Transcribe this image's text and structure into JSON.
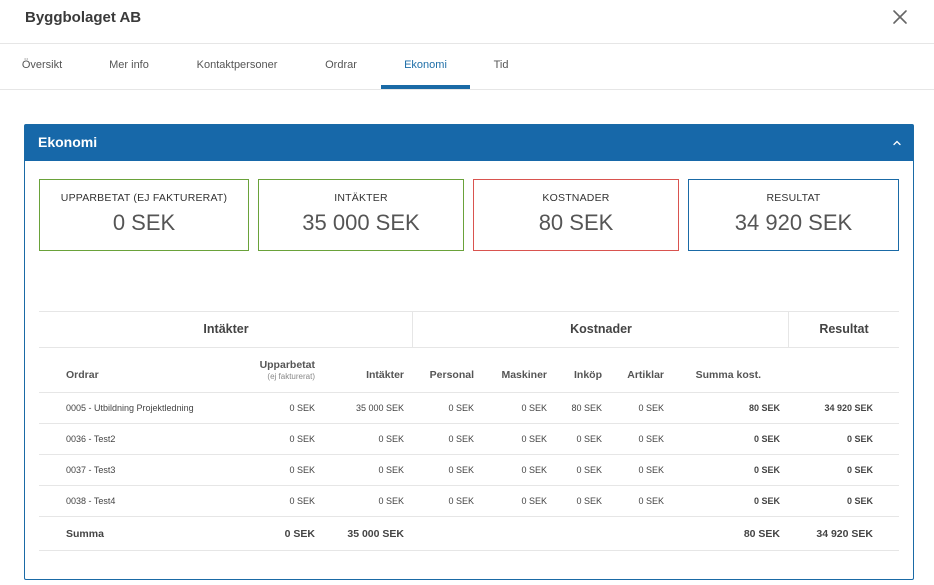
{
  "header": {
    "title": "Byggbolaget AB",
    "close_icon": "close-icon"
  },
  "tabs": [
    {
      "label": "Översikt"
    },
    {
      "label": "Mer info"
    },
    {
      "label": "Kontaktpersoner"
    },
    {
      "label": "Ordrar"
    },
    {
      "label": "Ekonomi",
      "active": true
    },
    {
      "label": "Tid"
    }
  ],
  "panel": {
    "title": "Ekonomi",
    "toggle_icon": "chevron-up-icon"
  },
  "cards": [
    {
      "label": "UPPARBETAT (EJ FAKTURERAT)",
      "value": "0 SEK",
      "color": "#6aa23a"
    },
    {
      "label": "INTÄKTER",
      "value": "35 000 SEK",
      "color": "#6aa23a"
    },
    {
      "label": "KOSTNADER",
      "value": "80 SEK",
      "color": "#d9534f"
    },
    {
      "label": "RESULTAT",
      "value": "34 920 SEK",
      "color": "#1a6aa6"
    }
  ],
  "table": {
    "groups": {
      "intakter": "Intäkter",
      "kostnader": "Kostnader",
      "resultat": "Resultat"
    },
    "columns": {
      "ordrar": "Ordrar",
      "upparbetat": "Upparbetat",
      "upparbetat_sub": "(ej fakturerat)",
      "intakter": "Intäkter",
      "personal": "Personal",
      "maskiner": "Maskiner",
      "inkop": "Inköp",
      "artiklar": "Artiklar",
      "summa_kost": "Summa kost."
    },
    "rows": [
      {
        "order": "0005 - Utbildning Projektledning",
        "upparbetat": "0 SEK",
        "intakter": "35 000 SEK",
        "personal": "0 SEK",
        "maskiner": "0 SEK",
        "inkop": "80 SEK",
        "artiklar": "0 SEK",
        "summa_kost": "80 SEK",
        "resultat": "34 920 SEK"
      },
      {
        "order": "0036 - Test2",
        "upparbetat": "0 SEK",
        "intakter": "0 SEK",
        "personal": "0 SEK",
        "maskiner": "0 SEK",
        "inkop": "0 SEK",
        "artiklar": "0 SEK",
        "summa_kost": "0 SEK",
        "resultat": "0 SEK"
      },
      {
        "order": "0037 - Test3",
        "upparbetat": "0 SEK",
        "intakter": "0 SEK",
        "personal": "0 SEK",
        "maskiner": "0 SEK",
        "inkop": "0 SEK",
        "artiklar": "0 SEK",
        "summa_kost": "0 SEK",
        "resultat": "0 SEK"
      },
      {
        "order": "0038 - Test4",
        "upparbetat": "0 SEK",
        "intakter": "0 SEK",
        "personal": "0 SEK",
        "maskiner": "0 SEK",
        "inkop": "0 SEK",
        "artiklar": "0 SEK",
        "summa_kost": "0 SEK",
        "resultat": "0 SEK"
      }
    ],
    "sum": {
      "label": "Summa",
      "upparbetat": "0 SEK",
      "intakter": "35 000 SEK",
      "summa_kost": "80 SEK",
      "resultat": "34 920 SEK"
    }
  }
}
